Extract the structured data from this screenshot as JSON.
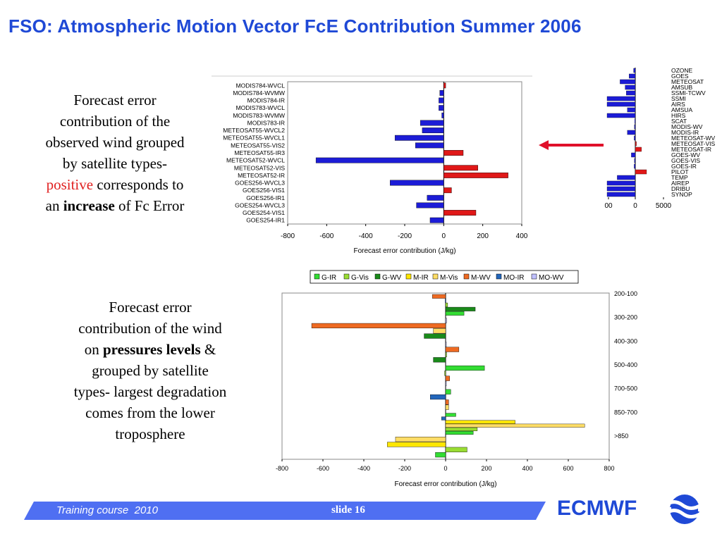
{
  "title": "FSO: Atmospheric Motion Vector FcE Contribution Summer 2006",
  "text1": {
    "line1": "Forecast error",
    "line2": "contribution of the",
    "line3": "observed wind grouped",
    "line4": "by satellite types-",
    "positive": "positive",
    "corresponds": " corresponds to",
    "an": "an ",
    "increase": "increase",
    "tail": " of Fc Error"
  },
  "text2": {
    "line1": "Forecast error",
    "line2": "contribution of the wind",
    "on": "on ",
    "pressures": "pressures levels",
    "amp": " &",
    "line4": "grouped by satellite",
    "line5": "types- largest degradation",
    "line6": "comes from the lower",
    "line7": "troposphere"
  },
  "footer": {
    "course": "Training course  2010",
    "slide": "slide 16",
    "logo": "ECMWF"
  },
  "colors": {
    "title": "#1f49d6",
    "blue_bar": "#1c1cd6",
    "red_bar": "#e01818",
    "arrow": "#e0102a",
    "footer_band": "#4f6ff2"
  },
  "chart_data": [
    {
      "type": "bar",
      "orientation": "horizontal",
      "categories": [
        "MODIS784-WVCL",
        "MODIS784-WVMW",
        "MODIS784-IR",
        "MODIS783-WVCL",
        "MODIS783-WVMW",
        "MODIS783-IR",
        "METEOSAT55-WVCL2",
        "METEOSAT55-WVCL1",
        "METEOSAT55-VIS2",
        "METEOSAT55-IR3",
        "METEOSAT52-WVCL",
        "METEOSAT52-VIS",
        "METEOSAT52-IR",
        "GOES256-WVCL3",
        "GOES256-VIS1",
        "GOES256-IR1",
        "GOES254-WVCL3",
        "GOES254-VIS1",
        "GOES254-IR1"
      ],
      "values": [
        10,
        -20,
        -25,
        -25,
        -10,
        -120,
        -110,
        -250,
        -145,
        100,
        -655,
        175,
        330,
        -275,
        40,
        -85,
        -140,
        165,
        -70
      ],
      "xlabel": "Forecast error contribution (J/kg)",
      "xlim": [
        -800,
        400
      ],
      "xticks": [
        "-800",
        "-600",
        "-400",
        "-200",
        "0",
        "200",
        "400"
      ],
      "grid": false,
      "legend": "none"
    },
    {
      "type": "bar",
      "orientation": "horizontal",
      "categories": [
        "OZONE",
        "GOES",
        "METEOSAT",
        "AMSUB",
        "SSMI-TCWV",
        "SSMI",
        "AIRS",
        "AMSUA",
        "HIRS",
        "SCAT",
        "MODIS-WV",
        "MODIS-IR",
        "METEOSAT-WV",
        "METEOSAT-VIS",
        "METEOSAT-IR",
        "GOES-WV",
        "GOES-VIS",
        "GOES-IR",
        "PILOT",
        "TEMP",
        "AIREP",
        "DRIBU",
        "SYNOP"
      ],
      "values": [
        -300,
        -1100,
        -2700,
        -1800,
        -1600,
        -5200,
        -6500,
        -1400,
        -5500,
        -100,
        -150,
        -1400,
        -200,
        200,
        1100,
        -700,
        -150,
        -200,
        2000,
        -3200,
        -5000,
        -5500,
        -5500
      ],
      "xticks": [
        "00",
        "0",
        "5000"
      ],
      "grid": false,
      "legend": "none"
    },
    {
      "type": "bar",
      "orientation": "horizontal",
      "categories": [
        "200-100",
        "300-200",
        "400-300",
        "500-400",
        "700-500",
        "850-700",
        ">850"
      ],
      "series_names": [
        "G-IR",
        "G-Vis",
        "G-WV",
        "M-IR",
        "M-Vis",
        "M-WV",
        "MO-IR",
        "MO-WV"
      ],
      "series_colors": [
        "#33dd33",
        "#99dd33",
        "#1a8a1a",
        "#ffe600",
        "#ffdd66",
        "#ee6a22",
        "#2266bb",
        "#c0c0ff"
      ],
      "bars": [
        {
          "cat": "200-100",
          "series": "M-WV",
          "value": -65
        },
        {
          "cat": "200-100",
          "series": "MO-IR",
          "value": -2
        },
        {
          "cat": "200-100",
          "series": "G-Vis",
          "value": 10
        },
        {
          "cat": "200-100",
          "series": "G-WV",
          "value": 145
        },
        {
          "cat": "200-100",
          "series": "G-IR",
          "value": 90
        },
        {
          "cat": "300-200",
          "series": "MO-WV",
          "value": 5
        },
        {
          "cat": "300-200",
          "series": "M-WV",
          "value": -655
        },
        {
          "cat": "300-200",
          "series": "M-Vis",
          "value": -60
        },
        {
          "cat": "300-200",
          "series": "G-WV",
          "value": -105
        },
        {
          "cat": "400-300",
          "series": "MO-WV",
          "value": 2
        },
        {
          "cat": "400-300",
          "series": "M-WV",
          "value": 65
        },
        {
          "cat": "400-300",
          "series": "G-Vis",
          "value": 5
        },
        {
          "cat": "400-300",
          "series": "G-WV",
          "value": -60
        },
        {
          "cat": "500-400",
          "series": "G-IR",
          "value": 190
        },
        {
          "cat": "500-400",
          "series": "G-Vis",
          "value": -5
        },
        {
          "cat": "500-400",
          "series": "M-WV",
          "value": 20
        },
        {
          "cat": "500-400",
          "series": "MO-WV",
          "value": 3
        },
        {
          "cat": "700-500",
          "series": "G-IR",
          "value": 25
        },
        {
          "cat": "700-500",
          "series": "MO-IR",
          "value": -75
        },
        {
          "cat": "700-500",
          "series": "M-WV",
          "value": 15
        },
        {
          "cat": "700-500",
          "series": "M-Vis",
          "value": 15
        },
        {
          "cat": "850-700",
          "series": "G-IR",
          "value": 50
        },
        {
          "cat": "850-700",
          "series": "MO-IR",
          "value": -20
        },
        {
          "cat": "850-700",
          "series": "M-IR",
          "value": 340
        },
        {
          "cat": "850-700",
          "series": "M-Vis",
          "value": 680
        },
        {
          "cat": "850-700",
          "series": "G-Vis",
          "value": 155
        },
        {
          "cat": "850-700",
          "series": "G-IR",
          "value": 135
        },
        {
          "cat": ">850",
          "series": "M-Vis",
          "value": -245
        },
        {
          "cat": ">850",
          "series": "M-IR",
          "value": -285
        },
        {
          "cat": ">850",
          "series": "G-Vis",
          "value": 105
        },
        {
          "cat": ">850",
          "series": "G-IR",
          "value": -50
        }
      ],
      "xlabel": "Forecast error contribution (J/kg)",
      "xlim": [
        -800,
        800
      ],
      "xticks": [
        "-800",
        "-600",
        "-400",
        "-200",
        "0",
        "200",
        "400",
        "600",
        "800"
      ],
      "grid": false,
      "legend": "top"
    }
  ]
}
